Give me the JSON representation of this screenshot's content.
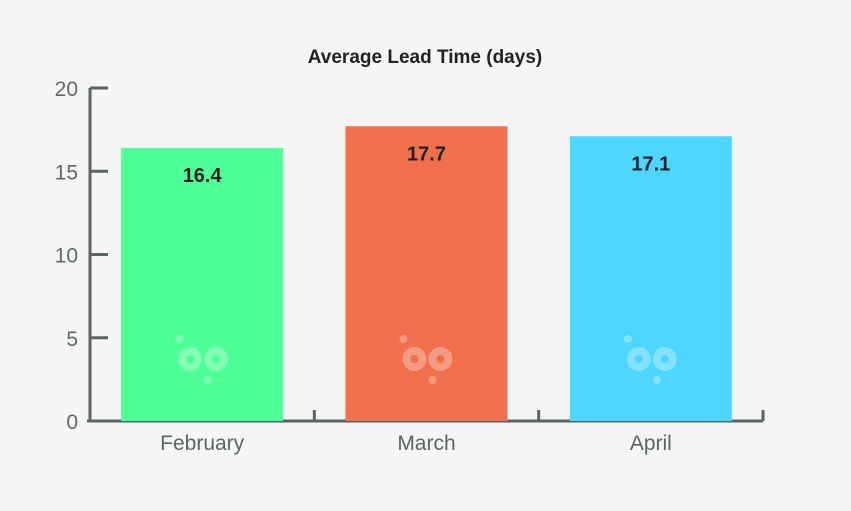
{
  "chart_data": {
    "type": "bar",
    "title": "Average Lead Time (days)",
    "xlabel": "",
    "ylabel": "",
    "categories": [
      "February",
      "March",
      "April"
    ],
    "values": [
      16.4,
      17.7,
      17.1
    ],
    "value_labels": [
      "16.4",
      "17.7",
      "17.1"
    ],
    "colors": [
      "#4cff96",
      "#f0704b",
      "#4dd6ff"
    ],
    "ylim": [
      0,
      20
    ],
    "yticks": [
      0,
      5,
      10,
      15,
      20
    ],
    "ytick_labels": [
      "0",
      "5",
      "10",
      "15",
      "20"
    ],
    "grid": false,
    "legend": "none",
    "axis_color": "#5a6563",
    "watermark_icon": "bp-logo-icon"
  }
}
